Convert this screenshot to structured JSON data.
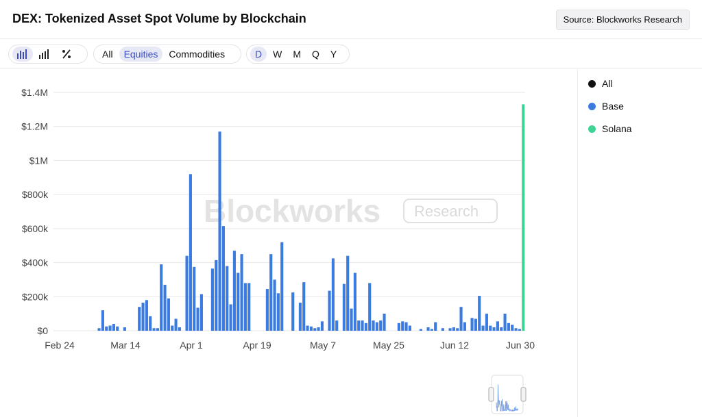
{
  "header": {
    "title": "DEX: Tokenized Asset Spot Volume by Blockchain",
    "source_label": "Source: Blockworks Research"
  },
  "toolbar": {
    "chart_type_buttons": [
      "bar-chart-icon",
      "stacked-bar-icon",
      "percent-icon"
    ],
    "asset_filters": [
      "All",
      "Equities",
      "Commodities"
    ],
    "asset_filter_active": "Equities",
    "time_filters": [
      "D",
      "W",
      "M",
      "Q",
      "Y"
    ],
    "time_filter_active": "D"
  },
  "legend": [
    {
      "label": "All",
      "color": "#111111"
    },
    {
      "label": "Base",
      "color": "#3b7be0"
    },
    {
      "label": "Solana",
      "color": "#3fd394"
    }
  ],
  "watermark": {
    "brand": "Blockworks",
    "tag": "Research"
  },
  "chart_data": {
    "type": "bar",
    "stacked": true,
    "title": "DEX: Tokenized Asset Spot Volume by Blockchain",
    "xlabel": "",
    "ylabel": "",
    "ylim": [
      0,
      1400000
    ],
    "y_ticks": [
      0,
      200000,
      400000,
      600000,
      800000,
      1000000,
      1200000,
      1400000
    ],
    "y_tick_labels": [
      "$0",
      "$200k",
      "$400k",
      "$600k",
      "$800k",
      "$1M",
      "$1.2M",
      "$1.4M"
    ],
    "x_tick_labels": [
      "Feb 24",
      "Mar 14",
      "Apr 1",
      "Apr 19",
      "May 7",
      "May 25",
      "Jun 12",
      "Jun 30"
    ],
    "x_tick_day_index": [
      0,
      18,
      36,
      54,
      72,
      90,
      108,
      126
    ],
    "date_range": [
      "Feb 24",
      "Jun 30"
    ],
    "grid": true,
    "legend_position": "right",
    "series": [
      {
        "name": "Base",
        "color": "#3b7be0",
        "values": [
          0,
          0,
          0,
          0,
          0,
          0,
          0,
          0,
          0,
          0,
          0,
          0,
          15000,
          120000,
          25000,
          30000,
          40000,
          25000,
          0,
          20000,
          0,
          0,
          0,
          140000,
          165000,
          180000,
          85000,
          15000,
          15000,
          390000,
          270000,
          190000,
          30000,
          70000,
          20000,
          0,
          440000,
          920000,
          375000,
          135000,
          215000,
          0,
          0,
          365000,
          415000,
          1170000,
          615000,
          380000,
          155000,
          470000,
          340000,
          450000,
          280000,
          280000,
          0,
          0,
          0,
          0,
          245000,
          450000,
          300000,
          220000,
          520000,
          0,
          0,
          225000,
          0,
          165000,
          285000,
          30000,
          25000,
          15000,
          20000,
          55000,
          0,
          235000,
          425000,
          60000,
          0,
          275000,
          440000,
          130000,
          340000,
          60000,
          60000,
          45000,
          280000,
          60000,
          50000,
          60000,
          100000,
          0,
          0,
          0,
          45000,
          55000,
          50000,
          30000,
          0,
          0,
          10000,
          0,
          20000,
          10000,
          50000,
          0,
          15000,
          0,
          15000,
          20000,
          15000,
          140000,
          50000,
          0,
          75000,
          70000,
          205000,
          30000,
          100000,
          30000,
          20000,
          55000,
          20000,
          100000,
          45000,
          35000,
          15000,
          10000,
          0
        ],
        "note": "values per day from Feb 24 to Jun 30"
      },
      {
        "name": "Solana",
        "color": "#3fd394",
        "values_last_day": 1330000
      }
    ]
  }
}
